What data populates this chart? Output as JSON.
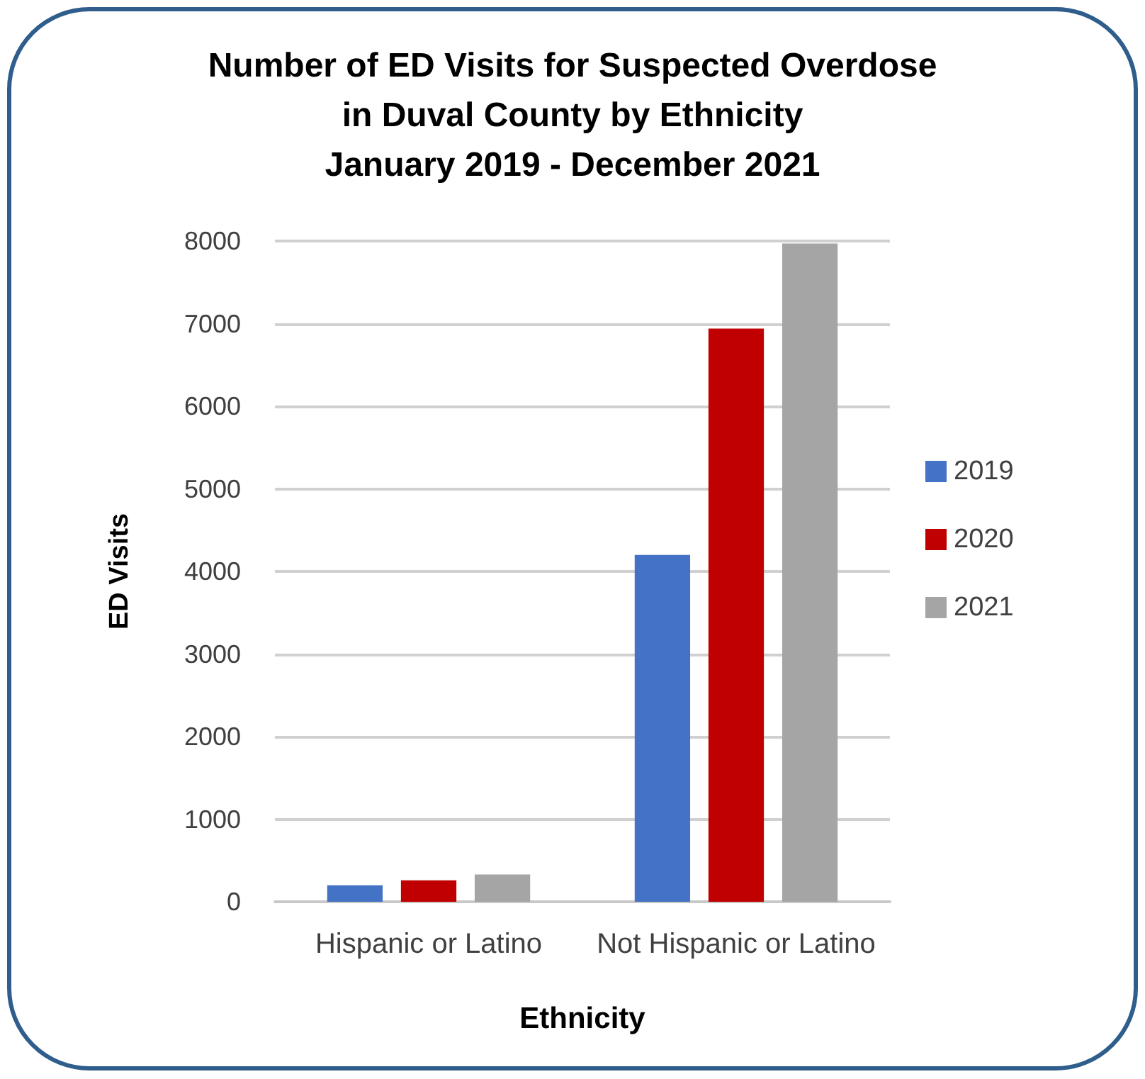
{
  "chart_data": {
    "type": "bar",
    "title": "Number of ED Visits for Suspected Overdose\nin Duval County by Ethnicity\nJanuary 2019 - December 2021",
    "xlabel": "Ethnicity",
    "ylabel": "ED Visits",
    "categories": [
      "Hispanic or Latino",
      "Not Hispanic or Latino"
    ],
    "series": [
      {
        "name": "2019",
        "color": "#4472c4",
        "values": [
          200,
          4200
        ]
      },
      {
        "name": "2020",
        "color": "#c00000",
        "values": [
          260,
          6940
        ]
      },
      {
        "name": "2021",
        "color": "#a5a5a5",
        "values": [
          330,
          7970
        ]
      }
    ],
    "ylim": [
      0,
      8000
    ],
    "yticks": [
      0,
      1000,
      2000,
      3000,
      4000,
      5000,
      6000,
      7000,
      8000
    ],
    "grid": "y",
    "legend": "right"
  }
}
